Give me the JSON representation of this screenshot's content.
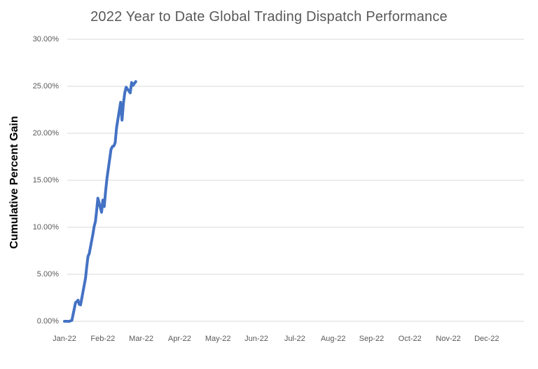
{
  "chart_data": {
    "type": "line",
    "title": "2022 Year to Date Global Trading Dispatch Performance",
    "xlabel": "",
    "ylabel": "Cumulative Percent Gain",
    "ylim": [
      0,
      30
    ],
    "grid": true,
    "legend": false,
    "colors": {
      "line": "#4472C4",
      "gridline": "#D9D9D9",
      "title_text": "#595959",
      "tick_text": "#595959",
      "axis_title_text": "#000000",
      "background": "#FFFFFF"
    },
    "yticks": [
      {
        "value": 0,
        "label": "0.00%"
      },
      {
        "value": 5,
        "label": "5.00%"
      },
      {
        "value": 10,
        "label": "10.00%"
      },
      {
        "value": 15,
        "label": "15.00%"
      },
      {
        "value": 20,
        "label": "20.00%"
      },
      {
        "value": 25,
        "label": "25.00%"
      },
      {
        "value": 30,
        "label": "30.00%"
      }
    ],
    "x_categories": [
      "Jan-22",
      "Feb-22",
      "Mar-22",
      "Apr-22",
      "May-22",
      "Jun-22",
      "Jul-22",
      "Aug-22",
      "Sep-22",
      "Oct-22",
      "Nov-22",
      "Dec-22"
    ],
    "series": [
      {
        "name": "Cumulative Percent Gain",
        "color": "#4472C4",
        "points": [
          {
            "date": "Jan 1",
            "value": 0.0
          },
          {
            "date": "Jan 3",
            "value": 0.0
          },
          {
            "date": "Jan 4",
            "value": 0.0
          },
          {
            "date": "Jan 5",
            "value": 0.0
          },
          {
            "date": "Jan 6",
            "value": 0.05
          },
          {
            "date": "Jan 7",
            "value": 0.1
          },
          {
            "date": "Jan 10",
            "value": 2.0
          },
          {
            "date": "Jan 11",
            "value": 2.1
          },
          {
            "date": "Jan 12",
            "value": 2.25
          },
          {
            "date": "Jan 13",
            "value": 1.8
          },
          {
            "date": "Jan 14",
            "value": 1.75
          },
          {
            "date": "Jan 18",
            "value": 4.6
          },
          {
            "date": "Jan 19",
            "value": 5.8
          },
          {
            "date": "Jan 20",
            "value": 6.9
          },
          {
            "date": "Jan 21",
            "value": 7.2
          },
          {
            "date": "Jan 24",
            "value": 9.3
          },
          {
            "date": "Jan 25",
            "value": 10.1
          },
          {
            "date": "Jan 26",
            "value": 10.6
          },
          {
            "date": "Jan 27",
            "value": 11.8
          },
          {
            "date": "Jan 28",
            "value": 13.1
          },
          {
            "date": "Jan 31",
            "value": 11.6
          },
          {
            "date": "Feb 1",
            "value": 12.9
          },
          {
            "date": "Feb 2",
            "value": 12.2
          },
          {
            "date": "Feb 3",
            "value": 13.8
          },
          {
            "date": "Feb 4",
            "value": 15.2
          },
          {
            "date": "Feb 7",
            "value": 18.3
          },
          {
            "date": "Feb 8",
            "value": 18.6
          },
          {
            "date": "Feb 9",
            "value": 18.65
          },
          {
            "date": "Feb 10",
            "value": 19.0
          },
          {
            "date": "Feb 11",
            "value": 20.6
          },
          {
            "date": "Feb 14",
            "value": 23.3
          },
          {
            "date": "Feb 15",
            "value": 21.4
          },
          {
            "date": "Feb 16",
            "value": 23.2
          },
          {
            "date": "Feb 17",
            "value": 24.3
          },
          {
            "date": "Feb 18",
            "value": 24.9
          },
          {
            "date": "Feb 21",
            "value": 24.3
          },
          {
            "date": "Feb 22",
            "value": 25.4
          },
          {
            "date": "Feb 23",
            "value": 25.1
          },
          {
            "date": "Feb 24",
            "value": 25.3
          },
          {
            "date": "Feb 25",
            "value": 25.5
          }
        ]
      }
    ]
  }
}
